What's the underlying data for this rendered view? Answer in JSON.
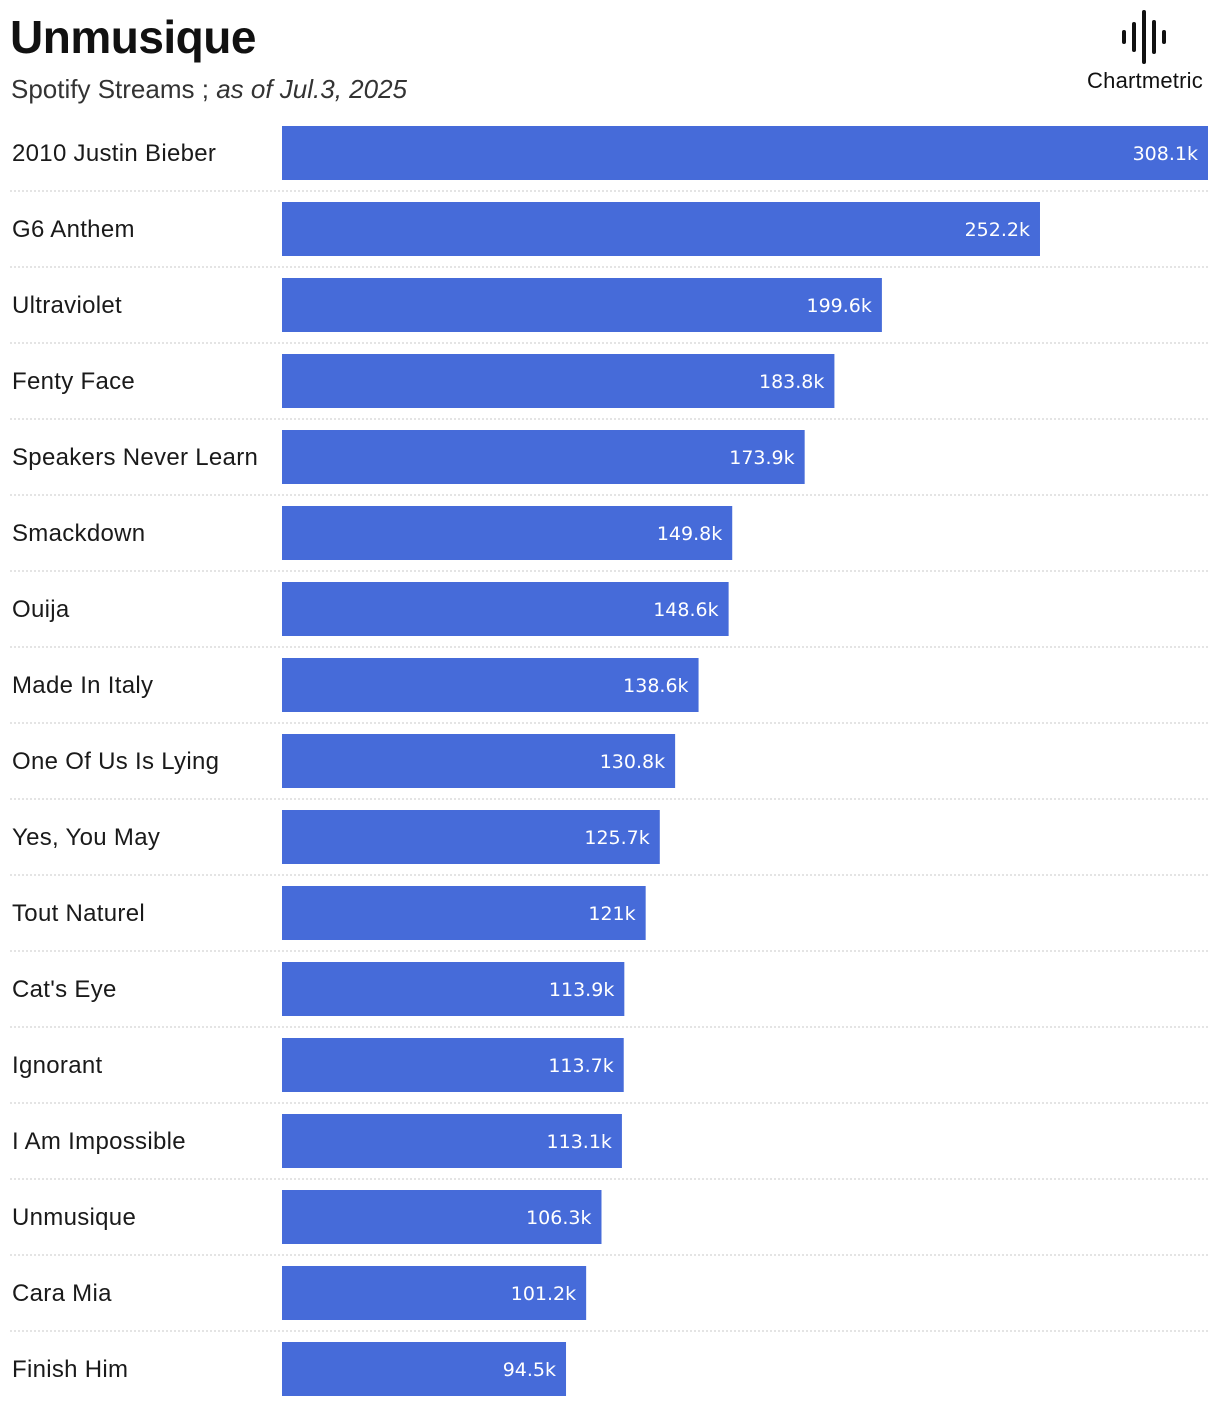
{
  "header": {
    "title": "Unmusique",
    "subtitle_metric": "Spotify Streams ; ",
    "subtitle_date": "as of Jul.3, 2025"
  },
  "logo": {
    "text": "Chartmetric",
    "icon": "sound-wave-icon"
  },
  "colors": {
    "bar": "#466BD9",
    "separator": "#c8c8c8"
  },
  "chart_data": {
    "type": "bar",
    "orientation": "horizontal",
    "title": "Unmusique",
    "subtitle": "Spotify Streams ; as of Jul.3, 2025",
    "xlabel": "",
    "ylabel": "",
    "xlim": [
      0,
      308100
    ],
    "grid": false,
    "categories": [
      "2010 Justin Bieber",
      "G6 Anthem",
      "Ultraviolet",
      "Fenty Face",
      "Speakers Never Learn",
      "Smackdown",
      "Ouija",
      "Made In Italy",
      "One Of Us Is Lying",
      "Yes, You May",
      "Tout Naturel",
      "Cat's Eye",
      "Ignorant",
      "I Am Impossible",
      "Unmusique",
      "Cara Mia",
      "Finish Him"
    ],
    "values": [
      308100,
      252200,
      199600,
      183800,
      173900,
      149800,
      148600,
      138600,
      130800,
      125700,
      121000,
      113900,
      113700,
      113100,
      106300,
      101200,
      94500
    ],
    "value_labels": [
      "308.1k",
      "252.2k",
      "199.6k",
      "183.8k",
      "173.9k",
      "149.8k",
      "148.6k",
      "138.6k",
      "130.8k",
      "125.7k",
      "121k",
      "113.9k",
      "113.7k",
      "113.1k",
      "106.3k",
      "101.2k",
      "94.5k"
    ]
  }
}
